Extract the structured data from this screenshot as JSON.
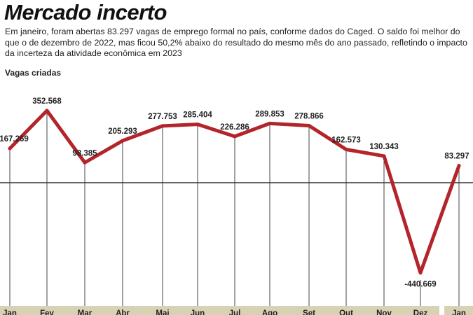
{
  "chart_data": {
    "type": "line",
    "title": "Mercado incerto",
    "subtitle": "Em janeiro, foram abertas 83.297 vagas de emprego formal no país, conforme dados do Caged. O saldo foi melhor do que o de dezembro de 2022, mas ficou 50,2% abaixo do resultado do mesmo mês do ano passado, refletindo o impacto da incerteza da atividade econômica em 2023",
    "ylabel": "Vagas criadas",
    "xlabel": "",
    "categories": [
      "Jan",
      "Fev",
      "Mar",
      "Abr",
      "Mai",
      "Jun",
      "Jul",
      "Ago",
      "Set",
      "Out",
      "Nov",
      "Dez",
      "Jan"
    ],
    "values": [
      167269,
      352568,
      98385,
      205293,
      277753,
      285404,
      226286,
      289853,
      278866,
      162573,
      130343,
      -440669,
      83297
    ],
    "data_labels": [
      "167.269",
      "352.568",
      "98.385",
      "205.293",
      "277.753",
      "285.404",
      "226.286",
      "289.853",
      "278.866",
      "162.573",
      "130.343",
      "-440.669",
      "83.297"
    ],
    "ylim": [
      -480000,
      420000
    ],
    "grid": "vertical lines per month",
    "colors": {
      "line": "#b3242b",
      "axis_band": "#d8d2b4",
      "zero_line": "#333333"
    }
  }
}
